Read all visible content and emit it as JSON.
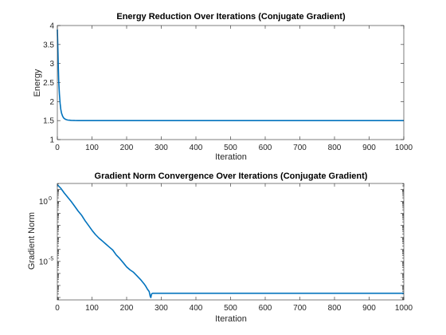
{
  "chart_data": [
    {
      "type": "line",
      "title": "Energy Reduction Over Iterations (Conjugate Gradient)",
      "xlabel": "Iteration",
      "ylabel": "Energy",
      "xlim": [
        0,
        1000
      ],
      "ylim": [
        1,
        4
      ],
      "yscale": "linear",
      "grid": false,
      "x_ticks": [
        0,
        100,
        200,
        300,
        400,
        500,
        600,
        700,
        800,
        900,
        1000
      ],
      "y_ticks": [
        1,
        1.5,
        2,
        2.5,
        3,
        3.5,
        4
      ],
      "series": [
        {
          "color": "#0072bd",
          "x": [
            0,
            1,
            2,
            3,
            4,
            5,
            6,
            8,
            10,
            12,
            15,
            18,
            22,
            26,
            30,
            35,
            40,
            50,
            60,
            80,
            100,
            200,
            300,
            400,
            500,
            600,
            700,
            800,
            900,
            1000
          ],
          "y": [
            3.9,
            3.6,
            3.2,
            2.85,
            2.55,
            2.35,
            2.2,
            1.95,
            1.8,
            1.7,
            1.62,
            1.57,
            1.54,
            1.525,
            1.515,
            1.51,
            1.505,
            1.502,
            1.5,
            1.5,
            1.5,
            1.5,
            1.5,
            1.5,
            1.5,
            1.5,
            1.5,
            1.5,
            1.5,
            1.5
          ]
        }
      ]
    },
    {
      "type": "line",
      "title": "Gradient Norm Convergence Over Iterations (Conjugate Gradient)",
      "xlabel": "Iteration",
      "ylabel": "Gradient Norm",
      "xlim": [
        0,
        1000
      ],
      "ylim_log10": [
        -8.2,
        1.5
      ],
      "yscale": "log",
      "grid": false,
      "x_ticks": [
        0,
        100,
        200,
        300,
        400,
        500,
        600,
        700,
        800,
        900,
        1000
      ],
      "y_ticks_exponent": [
        0,
        -5
      ],
      "y_tick_labels": [
        {
          "base": "10",
          "exp": "0"
        },
        {
          "base": "10",
          "exp": "-5"
        }
      ],
      "series": [
        {
          "color": "#0072bd",
          "x": [
            0,
            10,
            20,
            30,
            40,
            50,
            60,
            70,
            80,
            90,
            100,
            110,
            120,
            130,
            140,
            150,
            160,
            170,
            180,
            190,
            200,
            210,
            220,
            230,
            240,
            250,
            255,
            260,
            265,
            268,
            270,
            272,
            275,
            280,
            300,
            400,
            500,
            600,
            700,
            800,
            900,
            1000
          ],
          "y_log10": [
            1.4,
            1.1,
            0.7,
            0.35,
            0.0,
            -0.4,
            -0.8,
            -1.15,
            -1.6,
            -2.0,
            -2.4,
            -2.75,
            -3.05,
            -3.3,
            -3.55,
            -3.8,
            -4.05,
            -4.45,
            -4.75,
            -5.1,
            -5.45,
            -5.7,
            -5.9,
            -6.2,
            -6.5,
            -6.85,
            -7.05,
            -7.3,
            -7.5,
            -7.9,
            -8.0,
            -7.7,
            -7.65,
            -7.65,
            -7.65,
            -7.65,
            -7.65,
            -7.65,
            -7.65,
            -7.65,
            -7.65,
            -7.65
          ]
        }
      ]
    }
  ]
}
